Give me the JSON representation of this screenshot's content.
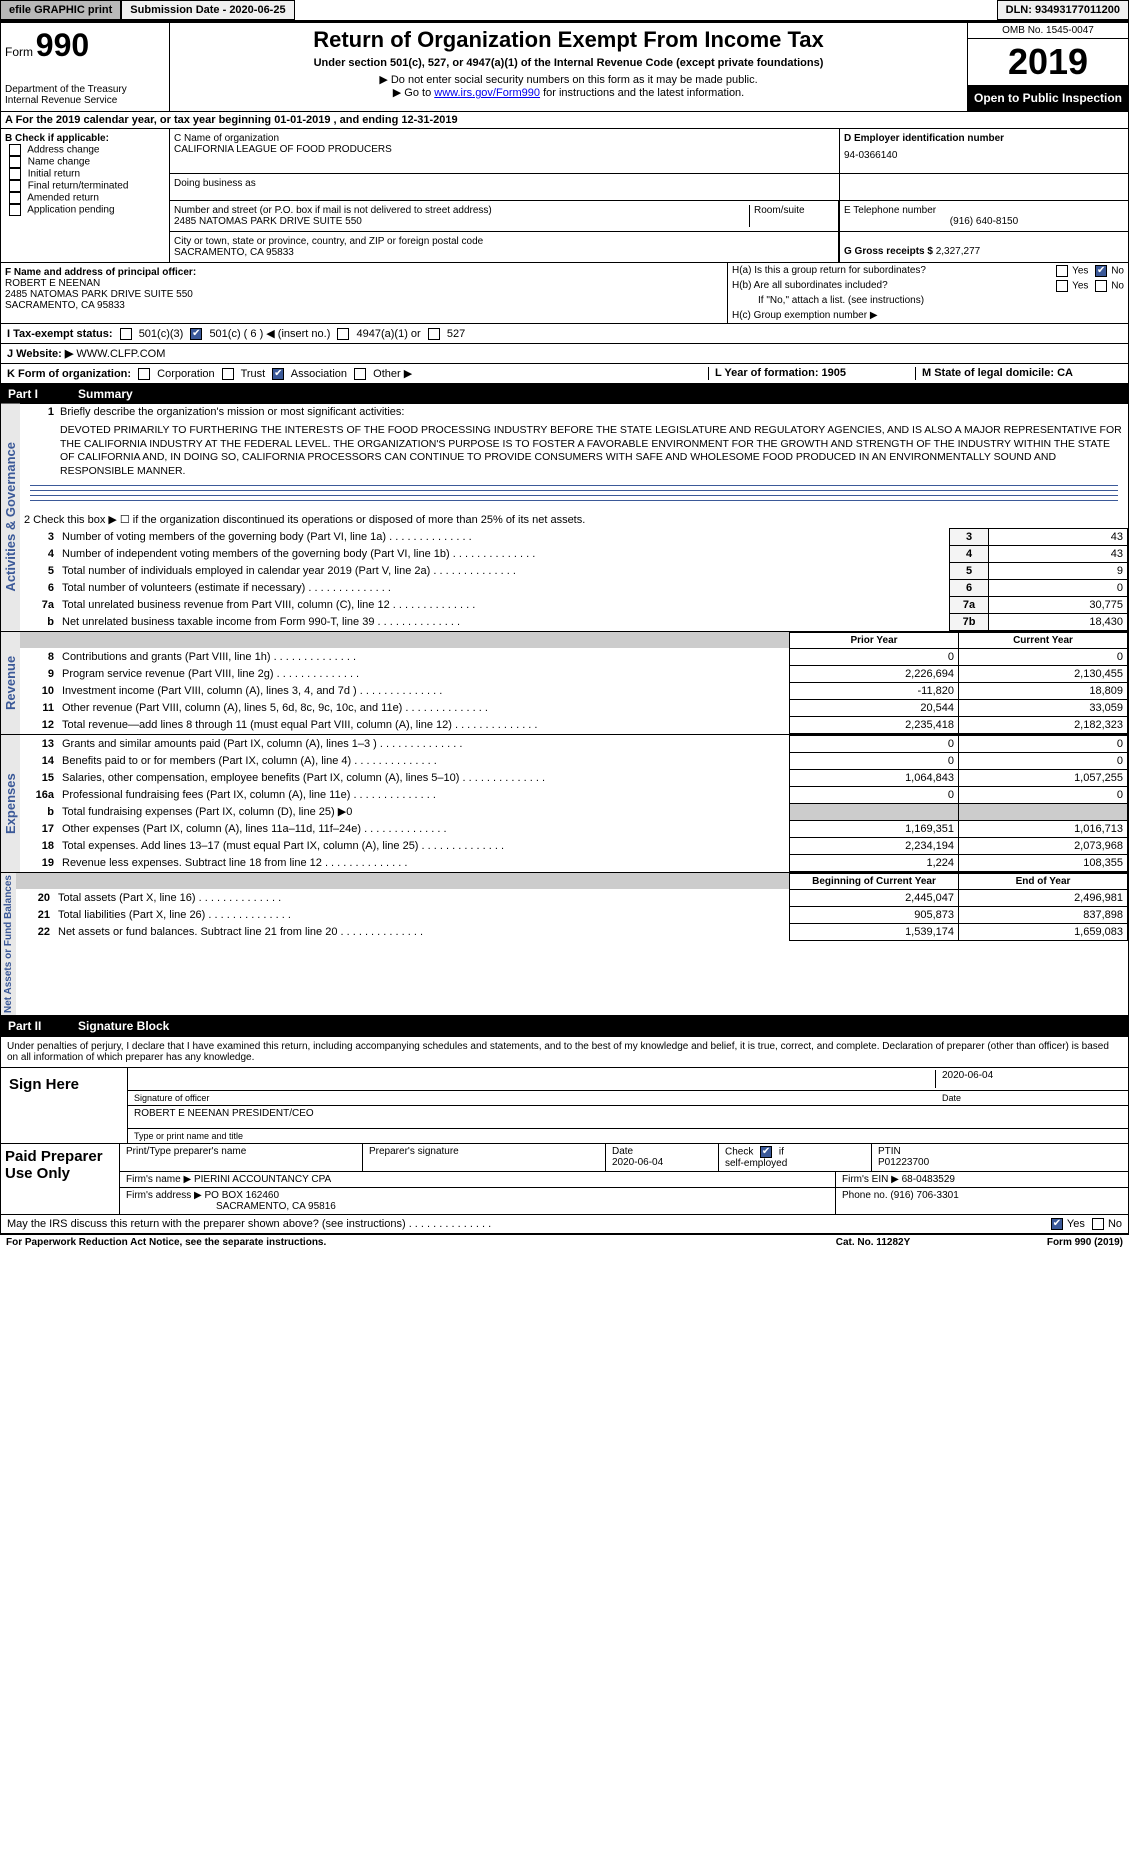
{
  "topbar": {
    "efile": "efile GRAPHIC print",
    "submission": "Submission Date - 2020-06-25",
    "dln": "DLN: 93493177011200"
  },
  "header": {
    "form_label": "Form",
    "form_num": "990",
    "dept": "Department of the Treasury",
    "irs": "Internal Revenue Service",
    "title": "Return of Organization Exempt From Income Tax",
    "subtitle": "Under section 501(c), 527, or 4947(a)(1) of the Internal Revenue Code (except private foundations)",
    "note1": "▶ Do not enter social security numbers on this form as it may be made public.",
    "note2": "▶ Go to ",
    "link": "www.irs.gov/Form990",
    "note2b": " for instructions and the latest information.",
    "omb": "OMB No. 1545-0047",
    "year": "2019",
    "open": "Open to Public Inspection"
  },
  "sectionA": "A For the 2019 calendar year, or tax year beginning 01-01-2019  , and ending 12-31-2019",
  "B": {
    "label": "B Check if applicable:",
    "opts": [
      "Address change",
      "Name change",
      "Initial return",
      "Final return/terminated",
      "Amended return",
      "Application pending"
    ]
  },
  "C": {
    "name_label": "C Name of organization",
    "name": "CALIFORNIA LEAGUE OF FOOD PRODUCERS",
    "dba_label": "Doing business as",
    "dba": "",
    "addr_label": "Number and street (or P.O. box if mail is not delivered to street address)",
    "addr": "2485 NATOMAS PARK DRIVE SUITE 550",
    "room_label": "Room/suite",
    "city_label": "City or town, state or province, country, and ZIP or foreign postal code",
    "city": "SACRAMENTO, CA  95833"
  },
  "D": {
    "label": "D Employer identification number",
    "value": "94-0366140"
  },
  "E": {
    "label": "E Telephone number",
    "value": "(916) 640-8150"
  },
  "G": {
    "label": "G Gross receipts $",
    "value": "2,327,277"
  },
  "F": {
    "label": "F Name and address of principal officer:",
    "name": "ROBERT E NEENAN",
    "addr": "2485 NATOMAS PARK DRIVE SUITE 550",
    "city": "SACRAMENTO, CA  95833"
  },
  "H": {
    "a": "H(a)  Is this a group return for subordinates?",
    "b": "H(b)  Are all subordinates included?",
    "b_note": "If \"No,\" attach a list. (see instructions)",
    "c": "H(c)  Group exemption number ▶"
  },
  "I": {
    "label": "I  Tax-exempt status:",
    "opts": [
      "501(c)(3)",
      "501(c) ( 6 ) ◀ (insert no.)",
      "4947(a)(1) or",
      "527"
    ]
  },
  "J": {
    "label": "J  Website: ▶",
    "value": "WWW.CLFP.COM"
  },
  "K": {
    "label": "K Form of organization:",
    "opts": [
      "Corporation",
      "Trust",
      "Association",
      "Other ▶"
    ],
    "L": "L Year of formation: 1905",
    "M": "M State of legal domicile: CA"
  },
  "part1": {
    "part": "Part I",
    "title": "Summary"
  },
  "mission_label": "1   Briefly describe the organization's mission or most significant activities:",
  "mission": "DEVOTED PRIMARILY TO FURTHERING THE INTERESTS OF THE FOOD PROCESSING INDUSTRY BEFORE THE STATE LEGISLATURE AND REGULATORY AGENCIES, AND IS ALSO A MAJOR REPRESENTATIVE FOR THE CALIFORNIA INDUSTRY AT THE FEDERAL LEVEL. THE ORGANIZATION'S PURPOSE IS TO FOSTER A FAVORABLE ENVIRONMENT FOR THE GROWTH AND STRENGTH OF THE INDUSTRY WITHIN THE STATE OF CALIFORNIA AND, IN DOING SO, CALIFORNIA PROCESSORS CAN CONTINUE TO PROVIDE CONSUMERS WITH SAFE AND WHOLESOME FOOD PRODUCED IN AN ENVIRONMENTALLY SOUND AND RESPONSIBLE MANNER.",
  "line2": "2   Check this box ▶ ☐ if the organization discontinued its operations or disposed of more than 25% of its net assets.",
  "gov_lines": [
    {
      "n": "3",
      "d": "Number of voting members of the governing body (Part VI, line 1a)",
      "box": "3",
      "v": "43"
    },
    {
      "n": "4",
      "d": "Number of independent voting members of the governing body (Part VI, line 1b)",
      "box": "4",
      "v": "43"
    },
    {
      "n": "5",
      "d": "Total number of individuals employed in calendar year 2019 (Part V, line 2a)",
      "box": "5",
      "v": "9"
    },
    {
      "n": "6",
      "d": "Total number of volunteers (estimate if necessary)",
      "box": "6",
      "v": "0"
    },
    {
      "n": "7a",
      "d": "Total unrelated business revenue from Part VIII, column (C), line 12",
      "box": "7a",
      "v": "30,775"
    },
    {
      "n": "b",
      "d": "Net unrelated business taxable income from Form 990-T, line 39",
      "box": "7b",
      "v": "18,430"
    }
  ],
  "col_headers": {
    "prior": "Prior Year",
    "current": "Current Year",
    "begin": "Beginning of Current Year",
    "end": "End of Year"
  },
  "revenue": [
    {
      "n": "8",
      "d": "Contributions and grants (Part VIII, line 1h)",
      "p": "0",
      "c": "0"
    },
    {
      "n": "9",
      "d": "Program service revenue (Part VIII, line 2g)",
      "p": "2,226,694",
      "c": "2,130,455"
    },
    {
      "n": "10",
      "d": "Investment income (Part VIII, column (A), lines 3, 4, and 7d )",
      "p": "-11,820",
      "c": "18,809"
    },
    {
      "n": "11",
      "d": "Other revenue (Part VIII, column (A), lines 5, 6d, 8c, 9c, 10c, and 11e)",
      "p": "20,544",
      "c": "33,059"
    },
    {
      "n": "12",
      "d": "Total revenue—add lines 8 through 11 (must equal Part VIII, column (A), line 12)",
      "p": "2,235,418",
      "c": "2,182,323"
    }
  ],
  "expenses": [
    {
      "n": "13",
      "d": "Grants and similar amounts paid (Part IX, column (A), lines 1–3 )",
      "p": "0",
      "c": "0"
    },
    {
      "n": "14",
      "d": "Benefits paid to or for members (Part IX, column (A), line 4)",
      "p": "0",
      "c": "0"
    },
    {
      "n": "15",
      "d": "Salaries, other compensation, employee benefits (Part IX, column (A), lines 5–10)",
      "p": "1,064,843",
      "c": "1,057,255"
    },
    {
      "n": "16a",
      "d": "Professional fundraising fees (Part IX, column (A), line 11e)",
      "p": "0",
      "c": "0"
    },
    {
      "n": "b",
      "d": "Total fundraising expenses (Part IX, column (D), line 25) ▶0",
      "p": "",
      "c": "",
      "shade": true
    },
    {
      "n": "17",
      "d": "Other expenses (Part IX, column (A), lines 11a–11d, 11f–24e)",
      "p": "1,169,351",
      "c": "1,016,713"
    },
    {
      "n": "18",
      "d": "Total expenses. Add lines 13–17 (must equal Part IX, column (A), line 25)",
      "p": "2,234,194",
      "c": "2,073,968"
    },
    {
      "n": "19",
      "d": "Revenue less expenses. Subtract line 18 from line 12",
      "p": "1,224",
      "c": "108,355"
    }
  ],
  "netassets": [
    {
      "n": "20",
      "d": "Total assets (Part X, line 16)",
      "p": "2,445,047",
      "c": "2,496,981"
    },
    {
      "n": "21",
      "d": "Total liabilities (Part X, line 26)",
      "p": "905,873",
      "c": "837,898"
    },
    {
      "n": "22",
      "d": "Net assets or fund balances. Subtract line 21 from line 20",
      "p": "1,539,174",
      "c": "1,659,083"
    }
  ],
  "part2": {
    "part": "Part II",
    "title": "Signature Block"
  },
  "sig": {
    "perjury": "Under penalties of perjury, I declare that I have examined this return, including accompanying schedules and statements, and to the best of my knowledge and belief, it is true, correct, and complete. Declaration of preparer (other than officer) is based on all information of which preparer has any knowledge.",
    "sign_here": "Sign Here",
    "sig_officer": "Signature of officer",
    "date": "Date",
    "date_val": "2020-06-04",
    "name_title": "ROBERT E NEENAN PRESIDENT/CEO",
    "name_title_label": "Type or print name and title",
    "paid": "Paid Preparer Use Only",
    "prep_name_label": "Print/Type preparer's name",
    "prep_sig_label": "Preparer's signature",
    "prep_date_label": "Date",
    "prep_date": "2020-06-04",
    "check_self": "Check ☑ if self-employed",
    "ptin_label": "PTIN",
    "ptin": "P01223700",
    "firm_name_label": "Firm's name     ▶",
    "firm_name": "PIERINI ACCOUNTANCY CPA",
    "firm_ein_label": "Firm's EIN ▶",
    "firm_ein": "68-0483529",
    "firm_addr_label": "Firm's address ▶",
    "firm_addr": "PO BOX 162460",
    "firm_city": "SACRAMENTO, CA  95816",
    "phone_label": "Phone no.",
    "phone": "(916) 706-3301",
    "discuss": "May the IRS discuss this return with the preparer shown above? (see instructions)",
    "yes": "Yes",
    "no": "No"
  },
  "footer": {
    "pra": "For Paperwork Reduction Act Notice, see the separate instructions.",
    "cat": "Cat. No. 11282Y",
    "form": "Form 990 (2019)"
  },
  "side": {
    "gov": "Activities & Governance",
    "rev": "Revenue",
    "exp": "Expenses",
    "net": "Net Assets or Fund Balances"
  }
}
